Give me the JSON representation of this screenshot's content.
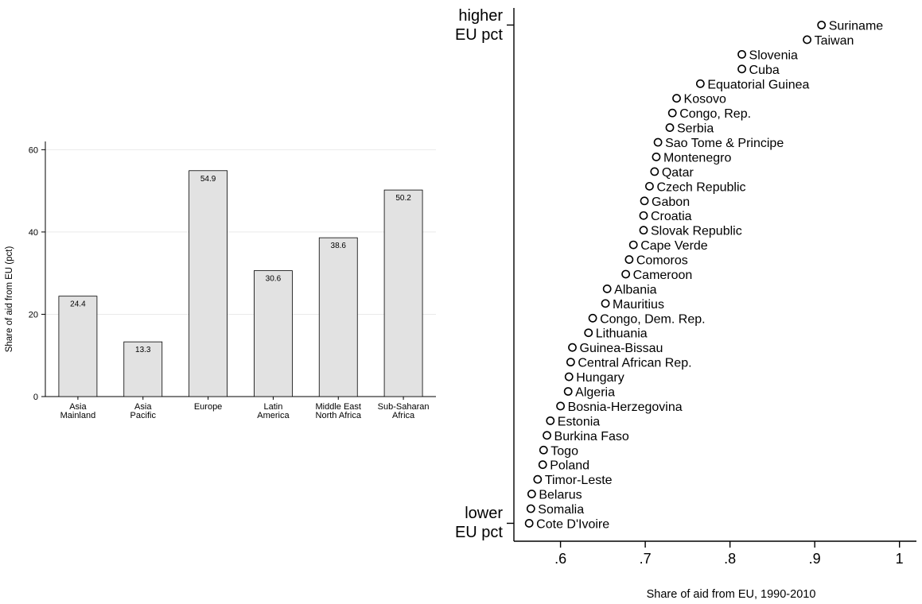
{
  "chart_data": [
    {
      "type": "bar",
      "ylabel": "Share of aid from EU (pct)",
      "xlabel": "",
      "ylim": [
        0,
        62
      ],
      "yticks": [
        0,
        20,
        40,
        60
      ],
      "grid": true,
      "categories": [
        [
          "Asia",
          "Mainland"
        ],
        [
          "Asia",
          "Pacific"
        ],
        [
          "Europe"
        ],
        [
          "Latin",
          "America"
        ],
        [
          "Middle East",
          "North Africa"
        ],
        [
          "Sub-Saharan",
          "Africa"
        ]
      ],
      "values": [
        24.4,
        13.3,
        54.9,
        30.6,
        38.6,
        50.2
      ],
      "data_labels": [
        "24.4",
        "13.3",
        "54.9",
        "30.6",
        "38.6",
        "50.2"
      ],
      "bar_color": "#e2e2e2"
    },
    {
      "type": "scatter",
      "xlabel": "Share of aid from EU, 1990-2010",
      "xlim": [
        0.545,
        1.02
      ],
      "xticks": [
        0.6,
        0.7,
        0.8,
        0.9,
        1.0
      ],
      "xtick_labels": [
        ".6",
        ".7",
        ".8",
        ".9",
        "1"
      ],
      "y_end_labels": {
        "top": [
          "higher",
          "EU pct"
        ],
        "bottom": [
          "lower",
          "EU pct"
        ]
      },
      "points": [
        {
          "label": "Suriname",
          "x": 0.908
        },
        {
          "label": "Taiwan",
          "x": 0.891
        },
        {
          "label": "Slovenia",
          "x": 0.814
        },
        {
          "label": "Cuba",
          "x": 0.814
        },
        {
          "label": "Equatorial Guinea",
          "x": 0.765
        },
        {
          "label": "Kosovo",
          "x": 0.737
        },
        {
          "label": "Congo, Rep.",
          "x": 0.732
        },
        {
          "label": "Serbia",
          "x": 0.729
        },
        {
          "label": "Sao Tome & Principe",
          "x": 0.715
        },
        {
          "label": "Montenegro",
          "x": 0.713
        },
        {
          "label": "Qatar",
          "x": 0.711
        },
        {
          "label": "Czech Republic",
          "x": 0.705
        },
        {
          "label": "Gabon",
          "x": 0.699
        },
        {
          "label": "Croatia",
          "x": 0.698
        },
        {
          "label": "Slovak Republic",
          "x": 0.698
        },
        {
          "label": "Cape Verde",
          "x": 0.686
        },
        {
          "label": "Comoros",
          "x": 0.681
        },
        {
          "label": "Cameroon",
          "x": 0.677
        },
        {
          "label": "Albania",
          "x": 0.655
        },
        {
          "label": "Mauritius",
          "x": 0.653
        },
        {
          "label": "Congo, Dem. Rep.",
          "x": 0.638
        },
        {
          "label": "Lithuania",
          "x": 0.633
        },
        {
          "label": "Guinea-Bissau",
          "x": 0.614
        },
        {
          "label": "Central African Rep.",
          "x": 0.612
        },
        {
          "label": "Hungary",
          "x": 0.61
        },
        {
          "label": "Algeria",
          "x": 0.609
        },
        {
          "label": "Bosnia-Herzegovina",
          "x": 0.6
        },
        {
          "label": "Estonia",
          "x": 0.588
        },
        {
          "label": "Burkina Faso",
          "x": 0.584
        },
        {
          "label": "Togo",
          "x": 0.58
        },
        {
          "label": "Poland",
          "x": 0.579
        },
        {
          "label": "Timor-Leste",
          "x": 0.573
        },
        {
          "label": "Belarus",
          "x": 0.566
        },
        {
          "label": "Somalia",
          "x": 0.565
        },
        {
          "label": "Cote D'Ivoire",
          "x": 0.563
        }
      ]
    }
  ]
}
